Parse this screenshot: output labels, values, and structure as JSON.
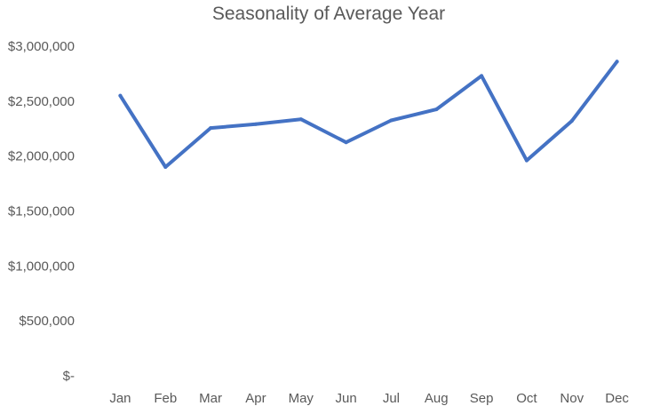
{
  "chart_data": {
    "type": "line",
    "title": "Seasonality of Average Year",
    "xlabel": "",
    "ylabel": "",
    "categories": [
      "Jan",
      "Feb",
      "Mar",
      "Apr",
      "May",
      "Jun",
      "Jul",
      "Aug",
      "Sep",
      "Oct",
      "Nov",
      "Dec"
    ],
    "series": [
      {
        "values": [
          2550000,
          1900000,
          2255000,
          2290000,
          2335000,
          2125000,
          2325000,
          2425000,
          2730000,
          1960000,
          2320000,
          2860000
        ],
        "color": "#4472C4"
      }
    ],
    "ylim": [
      0,
      3000000
    ],
    "y_ticks": [
      {
        "value": 0,
        "label": "$-"
      },
      {
        "value": 500000,
        "label": "$500,000"
      },
      {
        "value": 1000000,
        "label": "$1,000,000"
      },
      {
        "value": 1500000,
        "label": "$1,500,000"
      },
      {
        "value": 2000000,
        "label": "$2,000,000"
      },
      {
        "value": 2500000,
        "label": "$2,500,000"
      },
      {
        "value": 3000000,
        "label": "$3,000,000"
      }
    ],
    "grid": false,
    "legend": "none"
  }
}
